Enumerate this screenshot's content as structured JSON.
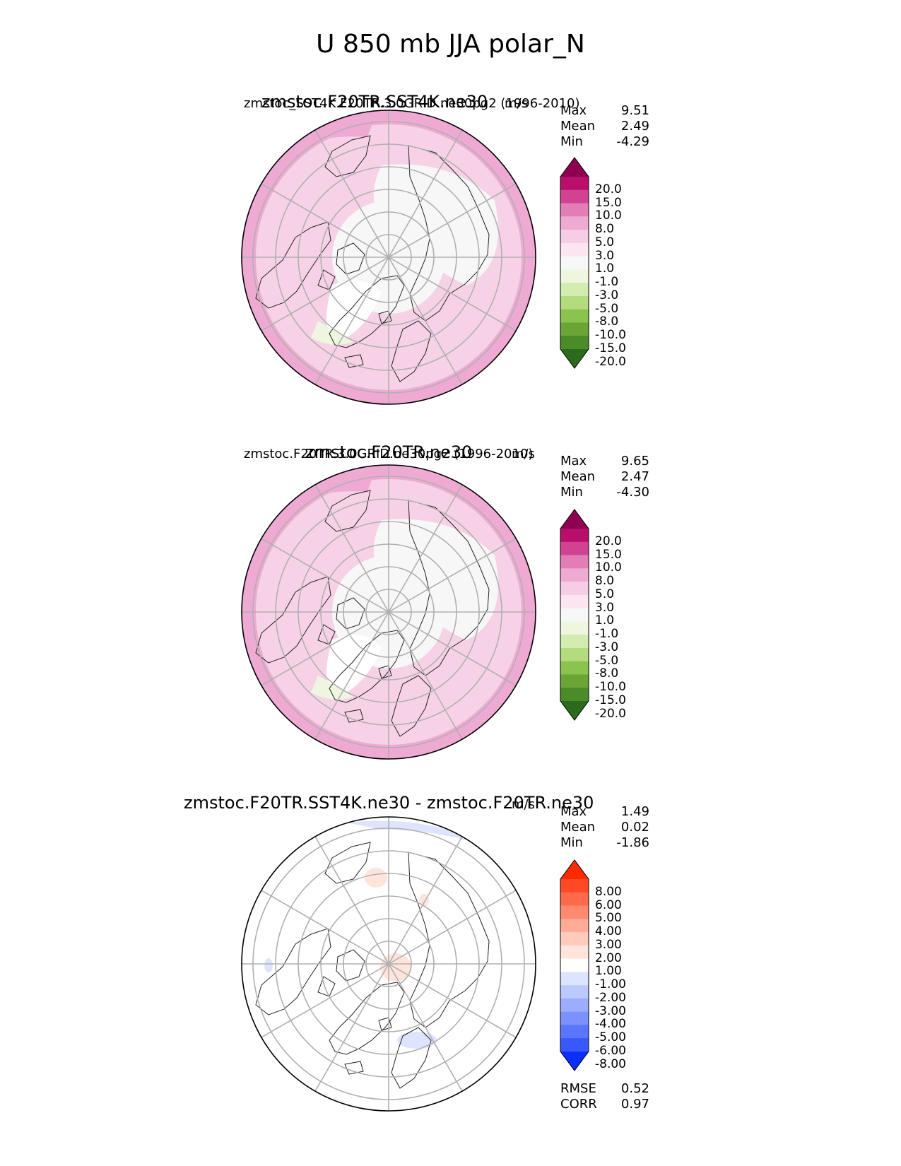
{
  "figure": {
    "title": "U 850 mb JJA polar_N"
  },
  "chart_data": [
    {
      "type": "heatmap",
      "projection": "north-polar-stereographic",
      "title": "zmstoc.F20TR.SST4K.ne30",
      "subtitle_left": "zmstoc_SST4K.F20TR.3.0GRID.ne30pg2 (1996-2010)",
      "subtitle_right": "m/s",
      "stats": {
        "max_label": "Max",
        "max": "9.51",
        "mean_label": "Mean",
        "mean": "2.49",
        "min_label": "Min",
        "min": "-4.29"
      },
      "colorbar": {
        "levels": [
          "20.0",
          "15.0",
          "10.0",
          "8.0",
          "5.0",
          "3.0",
          "1.0",
          "-1.0",
          "-3.0",
          "-5.0",
          "-8.0",
          "-10.0",
          "-15.0",
          "-20.0"
        ],
        "colors": [
          "#8e0152",
          "#b80f6b",
          "#d14391",
          "#e27db5",
          "#eeaad3",
          "#f7cde6",
          "#fae5f1",
          "#f7f7f7",
          "#eef6df",
          "#d4ecb0",
          "#b3dc7e",
          "#8bc34f",
          "#6aa535",
          "#4b8b28",
          "#2c6b1d"
        ]
      },
      "base_color": "#f7d2e6",
      "outer_color": "#eeaad3"
    },
    {
      "type": "heatmap",
      "projection": "north-polar-stereographic",
      "title": "zmstoc.F20TR.ne30",
      "subtitle_left": "zmstoc.F20TR.3.0GRID.ne30pg2 (1996-2010)",
      "subtitle_right": "m/s",
      "stats": {
        "max_label": "Max",
        "max": "9.65",
        "mean_label": "Mean",
        "mean": "2.47",
        "min_label": "Min",
        "min": "-4.30"
      },
      "colorbar": {
        "levels": [
          "20.0",
          "15.0",
          "10.0",
          "8.0",
          "5.0",
          "3.0",
          "1.0",
          "-1.0",
          "-3.0",
          "-5.0",
          "-8.0",
          "-10.0",
          "-15.0",
          "-20.0"
        ],
        "colors": [
          "#8e0152",
          "#b80f6b",
          "#d14391",
          "#e27db5",
          "#eeaad3",
          "#f7cde6",
          "#fae5f1",
          "#f7f7f7",
          "#eef6df",
          "#d4ecb0",
          "#b3dc7e",
          "#8bc34f",
          "#6aa535",
          "#4b8b28",
          "#2c6b1d"
        ]
      },
      "base_color": "#f7d2e6",
      "outer_color": "#eeaad3"
    },
    {
      "type": "heatmap",
      "projection": "north-polar-stereographic",
      "title": "zmstoc.F20TR.SST4K.ne30 - zmstoc.F20TR.ne30",
      "subtitle_left": "",
      "subtitle_right": "m/s",
      "stats": {
        "max_label": "Max",
        "max": "1.49",
        "mean_label": "Mean",
        "mean": "0.02",
        "min_label": "Min",
        "min": "-1.86"
      },
      "metrics": {
        "rmse_label": "RMSE",
        "rmse": "0.52",
        "corr_label": "CORR",
        "corr": "0.97"
      },
      "colorbar": {
        "levels": [
          "8.00",
          "6.00",
          "5.00",
          "4.00",
          "3.00",
          "2.00",
          "1.00",
          "-1.00",
          "-2.00",
          "-3.00",
          "-4.00",
          "-5.00",
          "-6.00",
          "-8.00"
        ],
        "colors": [
          "#ff2b00",
          "#ff4a25",
          "#ff6a4a",
          "#ff8a70",
          "#ffab97",
          "#ffcbbd",
          "#ffe4dc",
          "#ffffff",
          "#dde4ff",
          "#bcc9ff",
          "#9cadff",
          "#7b91ff",
          "#5a75ff",
          "#3958ff",
          "#0a2fff"
        ]
      },
      "base_color": "#ffffff",
      "outer_color": "#ffffff"
    }
  ]
}
